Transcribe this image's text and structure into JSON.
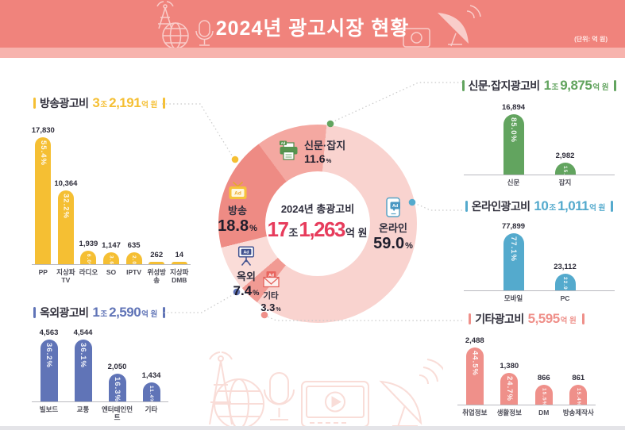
{
  "header": {
    "title": "2024년 광고시장 현황",
    "unit_note": "(단위: 억 원)"
  },
  "chart_data": [
    {
      "type": "pie",
      "id": "total",
      "title": "2024년 총광고비",
      "total_display": {
        "n1": "17",
        "u1": "조",
        "n2": "1,263",
        "u2": "억 원"
      },
      "percent_symbol": "%",
      "start_angle": -36.6,
      "legend_position": "around",
      "segments": [
        {
          "id": "print",
          "label": "신문·잡지",
          "value": 11.6,
          "percent_display": "11.6",
          "color": "#f4a8a1",
          "icon": "printer-icon"
        },
        {
          "id": "online",
          "label": "온라인",
          "value": 59.0,
          "percent_display": "59.0",
          "color": "#f9d3cf",
          "icon": "phone-icon"
        },
        {
          "id": "etc",
          "label": "기타",
          "value": 3.3,
          "percent_display": "3.3",
          "color": "#f19a93",
          "icon": "envelope-icon"
        },
        {
          "id": "outdoor",
          "label": "옥외",
          "value": 7.4,
          "percent_display": "7.4",
          "color": "#fadcd8",
          "icon": "billboard-icon"
        },
        {
          "id": "broadcast",
          "label": "방송",
          "value": 18.8,
          "percent_display": "18.8",
          "color": "#ee8b84",
          "icon": "tv-icon"
        }
      ]
    },
    {
      "type": "bar",
      "id": "broadcast",
      "title": "방송광고비",
      "accent": "#f5bf33",
      "amount": {
        "n1": "3",
        "u1": "조",
        "n2": "2,191",
        "u2": "억 원"
      },
      "categories": [
        "PP",
        "지상파TV",
        "라디오",
        "SO",
        "IPTV",
        "위성방송",
        "지상파\nDMB"
      ],
      "values": [
        17830,
        10364,
        1939,
        1147,
        635,
        262,
        14
      ],
      "value_labels": [
        "17,830",
        "10,364",
        "1,939",
        "1,147",
        "635",
        "262",
        "14"
      ],
      "pct_labels": [
        "55.4%",
        "32.2%",
        "6.0%",
        "3.6%",
        "2.0%",
        "",
        ""
      ]
    },
    {
      "type": "bar",
      "id": "print",
      "title": "신문·잡지광고비",
      "accent": "#62a45f",
      "amount": {
        "n1": "1",
        "u1": "조",
        "n2": "9,875",
        "u2": "억 원"
      },
      "categories": [
        "신문",
        "잡지"
      ],
      "values": [
        16894,
        2982
      ],
      "value_labels": [
        "16,894",
        "2,982"
      ],
      "pct_labels": [
        "85.0%",
        "15.0%"
      ]
    },
    {
      "type": "bar",
      "id": "online",
      "title": "온라인광고비",
      "accent": "#54aacd",
      "amount": {
        "n1": "10",
        "u1": "조",
        "n2": "1,011",
        "u2": "억 원"
      },
      "categories": [
        "모바일",
        "PC"
      ],
      "values": [
        77899,
        23112
      ],
      "value_labels": [
        "77,899",
        "23,112"
      ],
      "pct_labels": [
        "77.1%",
        "22.9%"
      ]
    },
    {
      "type": "bar",
      "id": "outdoor",
      "title": "옥외광고비",
      "accent": "#6074b7",
      "amount": {
        "n1": "1",
        "u1": "조",
        "n2": "2,590",
        "u2": "억 원"
      },
      "categories": [
        "빌보드",
        "교통",
        "엔터테인먼트",
        "기타"
      ],
      "values": [
        4563,
        4544,
        2050,
        1434
      ],
      "value_labels": [
        "4,563",
        "4,544",
        "2,050",
        "1,434"
      ],
      "pct_labels": [
        "36.2%",
        "36.1%",
        "16.3%",
        "11.4%"
      ]
    },
    {
      "type": "bar",
      "id": "etc",
      "title": "기타광고비",
      "accent": "#ef908a",
      "amount": {
        "n2": "5,595",
        "u2": "억 원"
      },
      "categories": [
        "취업정보",
        "생활정보",
        "DM",
        "방송제작사"
      ],
      "values": [
        2488,
        1380,
        866,
        861
      ],
      "value_labels": [
        "2,488",
        "1,380",
        "866",
        "861"
      ],
      "pct_labels": [
        "44.5%",
        "24.7%",
        "15.5%",
        "15.4%"
      ]
    }
  ]
}
